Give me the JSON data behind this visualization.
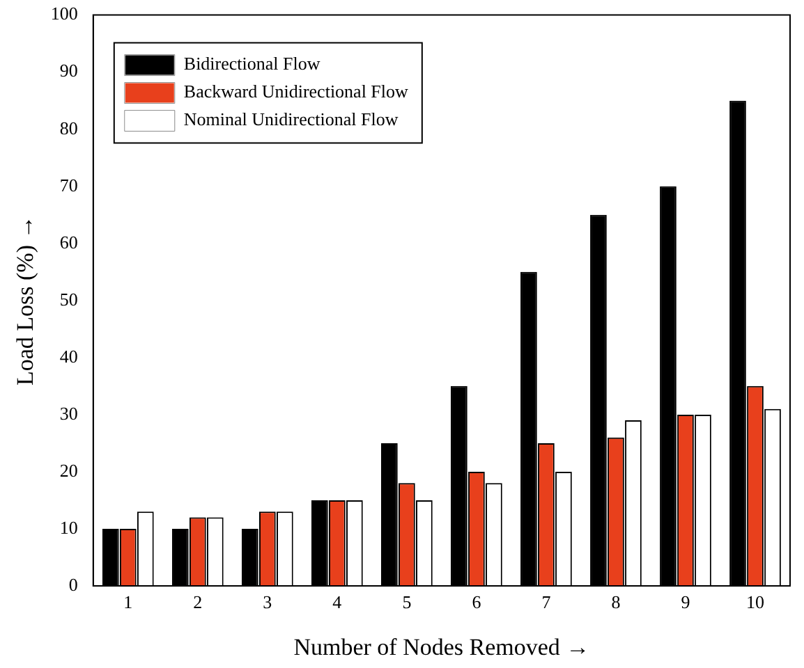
{
  "chart_data": {
    "type": "bar",
    "xlabel": "Number of Nodes Removed →",
    "ylabel": "Load Loss (%) →",
    "categories": [
      "1",
      "2",
      "3",
      "4",
      "5",
      "6",
      "7",
      "8",
      "9",
      "10"
    ],
    "series": [
      {
        "name": "Bidirectional Flow",
        "color": "#000000",
        "values": [
          10,
          10,
          10,
          15,
          25,
          35,
          55,
          65,
          70,
          85
        ]
      },
      {
        "name": "Backward Unidirectional Flow",
        "color": "#e8401c",
        "values": [
          10,
          12,
          13,
          15,
          18,
          20,
          25,
          26,
          30,
          35
        ]
      },
      {
        "name": "Nominal Unidirectional Flow",
        "color": "#ffffff",
        "values": [
          13,
          12,
          13,
          15,
          15,
          18,
          20,
          29,
          30,
          31
        ]
      }
    ],
    "ylim": [
      0,
      100
    ],
    "yticks": [
      0,
      10,
      20,
      30,
      40,
      50,
      60,
      70,
      80,
      90,
      100
    ],
    "grid": false,
    "legend": "top left"
  }
}
